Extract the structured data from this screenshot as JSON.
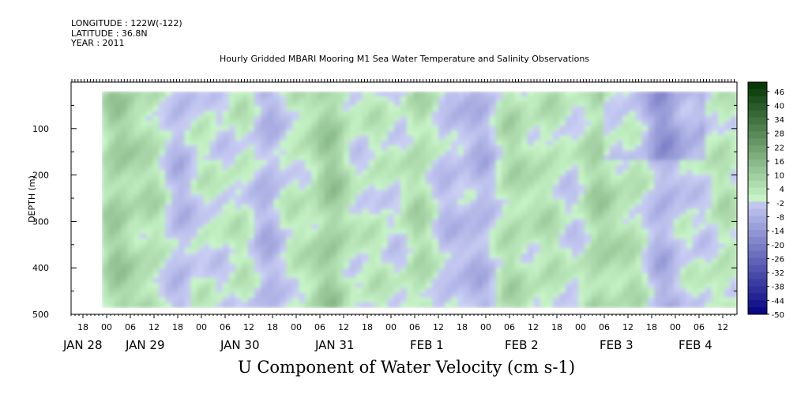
{
  "meta": {
    "longitude": "LONGITUDE : 122W(-122)",
    "latitude": "LATITUDE : 36.8N",
    "year": "YEAR : 2011"
  },
  "chart_data": {
    "type": "heatmap",
    "title": "Hourly Gridded MBARI Mooring M1 Sea Water Temperature and Salinity Observations",
    "xlabel": "U Component of Water Velocity (cm s-1)",
    "ylabel": "DEPTH (m)",
    "ylim": [
      500,
      0
    ],
    "y_ticks": [
      100,
      200,
      300,
      400,
      500
    ],
    "y_tick_labels": [
      "100",
      "200",
      "300",
      "400",
      "500"
    ],
    "data_depth_range": [
      20,
      485
    ],
    "x_hour_tick_labels": [
      "18",
      "00",
      "06",
      "12",
      "18",
      "00",
      "06",
      "12",
      "18",
      "00",
      "06",
      "12",
      "18",
      "00",
      "06",
      "12",
      "18",
      "00",
      "06",
      "12",
      "18",
      "00",
      "06",
      "12",
      "18",
      "00",
      "06",
      "12"
    ],
    "x_day_labels": [
      "JAN 28",
      "JAN 29",
      "JAN 30",
      "JAN 31",
      "FEB  1",
      "FEB  2",
      "FEB  3",
      "FEB  4"
    ],
    "colorbar_labels": [
      "46",
      "40",
      "34",
      "28",
      "22",
      "16",
      "10",
      "4",
      "-2",
      "-8",
      "-14",
      "-20",
      "-26",
      "-32",
      "-38",
      "-44",
      "-50"
    ],
    "colorbar_min": -50,
    "colorbar_max": 50,
    "colorbar_step": 3,
    "colors": {
      "neg_strong": "#000080",
      "neg_light": "#cbd0f5",
      "pos_light": "#c8f5c8",
      "pos_strong": "#003300"
    }
  }
}
